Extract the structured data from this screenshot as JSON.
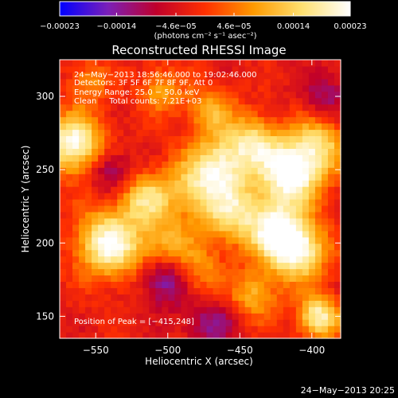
{
  "chart_data": {
    "type": "heatmap",
    "title": "Reconstructed RHESSI Image",
    "xlabel": "Heliocentric X (arcsec)",
    "ylabel": "Heliocentric Y (arcsec)",
    "xlim": [
      -575,
      -380
    ],
    "ylim": [
      135,
      325
    ],
    "x_ticks": [
      -550,
      -500,
      -450,
      -400
    ],
    "y_ticks": [
      150,
      200,
      250,
      300
    ],
    "x_tick_labels": [
      "−550",
      "−500",
      "−450",
      "−400"
    ],
    "y_tick_labels": [
      "150",
      "200",
      "250",
      "300"
    ],
    "colorbar": {
      "range": [
        -0.00023,
        0.00023
      ],
      "ticks": [
        -0.00023,
        -0.00014,
        -4.6e-05,
        4.6e-05,
        0.00014,
        0.00023
      ],
      "tick_labels": [
        "−0.00023",
        "−0.00014",
        "−4.6e−05",
        "4.6e−05",
        "0.00014",
        "0.00023"
      ],
      "unit_label": "(photons cm⁻² s⁻¹ asec⁻²)",
      "colors": [
        "#0000ff",
        "#7b1fb8",
        "#c0002a",
        "#ff3000",
        "#ff9a00",
        "#ffe070",
        "#ffffff"
      ]
    },
    "annotations": [
      "24−May−2013 18:56:46.000 to 19:02:46.000",
      "Detectors: 3F 5F 6F 7F 8F 9F, Att 0",
      "Energy Range: 25.0 − 50.0 keV",
      "Clean     Total counts: 7.21E+03"
    ],
    "peak_label": "Position of Peak = [−415,248]",
    "peak": [
      -415,
      248
    ],
    "timestamp": "24−May−2013 20:25",
    "blobs": [
      {
        "x": -415,
        "y": 248,
        "amp": 1.0,
        "r": 15
      },
      {
        "x": -395,
        "y": 268,
        "amp": 0.55,
        "r": 14
      },
      {
        "x": -565,
        "y": 268,
        "amp": 0.9,
        "r": 14
      },
      {
        "x": -540,
        "y": 200,
        "amp": 0.9,
        "r": 16
      },
      {
        "x": -515,
        "y": 230,
        "amp": 0.6,
        "r": 12
      },
      {
        "x": -480,
        "y": 240,
        "amp": 0.55,
        "r": 16
      },
      {
        "x": -460,
        "y": 255,
        "amp": 0.6,
        "r": 14
      },
      {
        "x": -440,
        "y": 270,
        "amp": 0.55,
        "r": 12
      },
      {
        "x": -455,
        "y": 220,
        "amp": 0.6,
        "r": 15
      },
      {
        "x": -425,
        "y": 210,
        "amp": 0.7,
        "r": 14
      },
      {
        "x": -410,
        "y": 195,
        "amp": 0.85,
        "r": 14
      },
      {
        "x": -395,
        "y": 150,
        "amp": 0.8,
        "r": 10
      },
      {
        "x": -470,
        "y": 290,
        "amp": 0.45,
        "r": 12
      },
      {
        "x": -505,
        "y": 305,
        "amp": 0.4,
        "r": 11
      },
      {
        "x": -555,
        "y": 310,
        "amp": 0.35,
        "r": 10
      },
      {
        "x": -480,
        "y": 180,
        "amp": 0.4,
        "r": 12
      },
      {
        "x": -440,
        "y": 165,
        "amp": 0.45,
        "r": 12
      },
      {
        "x": -500,
        "y": 200,
        "amp": 0.45,
        "r": 12
      }
    ],
    "dips": [
      {
        "x": -500,
        "y": 175,
        "amp": 0.5,
        "r": 12
      },
      {
        "x": -540,
        "y": 250,
        "amp": 0.35,
        "r": 10
      },
      {
        "x": -470,
        "y": 145,
        "amp": 0.35,
        "r": 12
      },
      {
        "x": -390,
        "y": 300,
        "amp": 0.3,
        "r": 12
      }
    ]
  }
}
